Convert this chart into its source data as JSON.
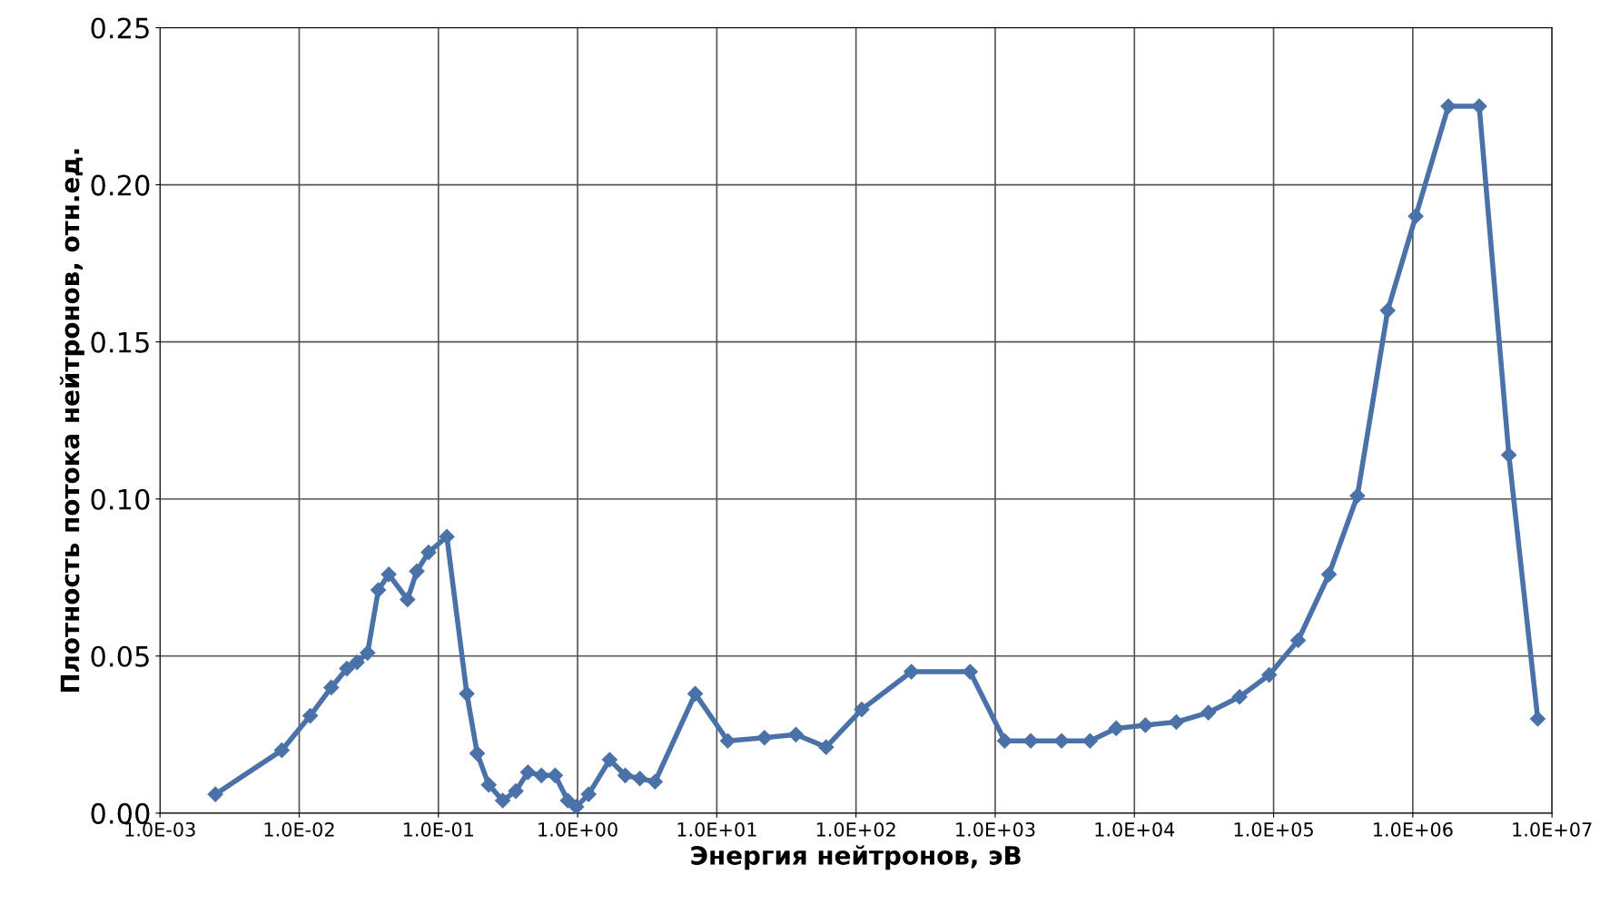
{
  "chart_data": {
    "type": "line",
    "xlabel": "Энергия нейтронов, эВ",
    "ylabel": "Плотность потока нейтронов, отн.ед.",
    "log": "x",
    "grid": true,
    "marker": "diamond",
    "line_style": "solid",
    "xlim": [
      0.001,
      10000000
    ],
    "ylim": [
      0,
      0.25
    ],
    "xticks": [
      {
        "value": 0.001,
        "label": "1.0E-03"
      },
      {
        "value": 0.01,
        "label": "1.0E-02"
      },
      {
        "value": 0.1,
        "label": "1.0E-01"
      },
      {
        "value": 1,
        "label": "1.0E+00"
      },
      {
        "value": 10,
        "label": "1.0E+01"
      },
      {
        "value": 100,
        "label": "1.0E+02"
      },
      {
        "value": 1000,
        "label": "1.0E+03"
      },
      {
        "value": 10000,
        "label": "1.0E+04"
      },
      {
        "value": 100000,
        "label": "1.0E+05"
      },
      {
        "value": 1000000,
        "label": "1.0E+06"
      },
      {
        "value": 10000000,
        "label": "1.0E+07"
      }
    ],
    "yticks": [
      {
        "value": 0,
        "label": "0.00"
      },
      {
        "value": 0.05,
        "label": "0.05"
      },
      {
        "value": 0.1,
        "label": "0.10"
      },
      {
        "value": 0.15,
        "label": "0.15"
      },
      {
        "value": 0.2,
        "label": "0.20"
      },
      {
        "value": 0.25,
        "label": "0.25"
      }
    ],
    "series": [
      {
        "color": "#4a72a8",
        "x": [
          0.0025,
          0.0075,
          0.012,
          0.017,
          0.022,
          0.026,
          0.031,
          0.037,
          0.044,
          0.06,
          0.07,
          0.085,
          0.115,
          0.16,
          0.19,
          0.23,
          0.29,
          0.36,
          0.44,
          0.55,
          0.69,
          0.85,
          0.98,
          1.2,
          1.7,
          2.2,
          2.8,
          3.6,
          7.0,
          12,
          22,
          37,
          61,
          110,
          250,
          660,
          1170,
          1800,
          3000,
          4800,
          7400,
          12000,
          20000,
          34000,
          57000,
          93000,
          150000,
          250000,
          400000,
          660000,
          1050000,
          1800000,
          3000000,
          4900000,
          7900000
        ],
        "values": [
          0.006,
          0.02,
          0.031,
          0.04,
          0.046,
          0.048,
          0.051,
          0.071,
          0.076,
          0.068,
          0.077,
          0.083,
          0.088,
          0.038,
          0.019,
          0.009,
          0.004,
          0.007,
          0.013,
          0.012,
          0.012,
          0.004,
          0.002,
          0.006,
          0.017,
          0.012,
          0.011,
          0.01,
          0.038,
          0.023,
          0.024,
          0.025,
          0.021,
          0.033,
          0.045,
          0.045,
          0.023,
          0.023,
          0.023,
          0.023,
          0.027,
          0.028,
          0.029,
          0.032,
          0.037,
          0.044,
          0.055,
          0.076,
          0.101,
          0.16,
          0.19,
          0.225,
          0.225,
          0.114,
          0.03
        ]
      }
    ]
  }
}
